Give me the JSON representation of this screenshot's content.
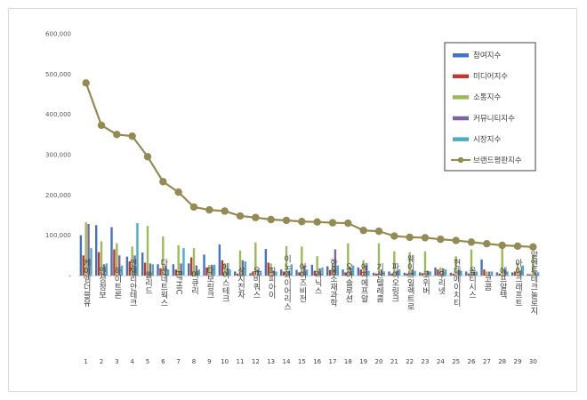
{
  "chart_data": {
    "type": "bar",
    "title": "",
    "xlabel": "",
    "ylabel": "",
    "ylim": [
      0,
      600000
    ],
    "yticks": [
      "-",
      "100,000",
      "200,000",
      "300,000",
      "400,000",
      "500,000",
      "600,000"
    ],
    "grid": false,
    "legend_position": "top-right",
    "categories": [
      "케이엠더블유",
      "인성정보",
      "하이트론",
      "인텔리안테크",
      "쏠리드",
      "다산네트웍스",
      "RFHIC",
      "머큐리",
      "다보링크",
      "에이스테크",
      "삼지전자",
      "유비쿼스",
      "피피아이",
      "이노와이어리스",
      "아이즈비전",
      "라닉스",
      "한울소재과학",
      "오이솔루션",
      "에치에프알",
      "기산텔레콤",
      "파이오링크",
      "웨이브일렉트로",
      "코위버",
      "우리넷",
      "현대에이치티",
      "옵티시스",
      "코콤",
      "에프알텍",
      "아이크래프트",
      "알엔투테크놀로지"
    ],
    "ranks": [
      "1",
      "2",
      "3",
      "4",
      "5",
      "6",
      "7",
      "8",
      "9",
      "10",
      "11",
      "12",
      "13",
      "14",
      "15",
      "16",
      "17",
      "18",
      "19",
      "20",
      "21",
      "22",
      "23",
      "24",
      "25",
      "26",
      "27",
      "28",
      "29",
      "30"
    ],
    "series": [
      {
        "name": "참여지수",
        "kind": "bar",
        "color": "#4472c4",
        "values": [
          100000,
          125000,
          120000,
          47000,
          57000,
          28000,
          28000,
          30000,
          52000,
          77000,
          10000,
          6000,
          66000,
          15000,
          14000,
          27000,
          23000,
          15000,
          20000,
          7000,
          10000,
          7000,
          8000,
          20000,
          7000,
          10000,
          40000,
          8000,
          8000,
          4000
        ]
      },
      {
        "name": "미디어지수",
        "kind": "bar",
        "color": "#c0392b",
        "values": [
          50000,
          58000,
          65000,
          35000,
          32000,
          18000,
          15000,
          45000,
          20000,
          38000,
          5000,
          10000,
          32000,
          10000,
          8000,
          12000,
          14000,
          8000,
          15000,
          5000,
          5000,
          5000,
          6000,
          15000,
          5000,
          5000,
          15000,
          5000,
          10000,
          3000
        ]
      },
      {
        "name": "소통지수",
        "kind": "bar",
        "color": "#9bbb59",
        "values": [
          132000,
          85000,
          80000,
          72000,
          123000,
          97000,
          75000,
          68000,
          26000,
          30000,
          62000,
          82000,
          30000,
          73000,
          72000,
          48000,
          30000,
          80000,
          38000,
          80000,
          60000,
          58000,
          60000,
          20000,
          48000,
          65000,
          10000,
          70000,
          32000,
          50000
        ]
      },
      {
        "name": "커뮤니티지수",
        "kind": "bar",
        "color": "#8064a2",
        "values": [
          128000,
          28000,
          50000,
          50000,
          30000,
          25000,
          30000,
          25000,
          27000,
          18000,
          38000,
          15000,
          12000,
          12000,
          25000,
          18000,
          65000,
          20000,
          25000,
          15000,
          12000,
          15000,
          12000,
          18000,
          12000,
          10000,
          10000,
          15000,
          12000,
          8000
        ]
      },
      {
        "name": "시장지수",
        "kind": "bar",
        "color": "#4bacc6",
        "values": [
          68000,
          30000,
          25000,
          130000,
          28000,
          15000,
          68000,
          15000,
          27000,
          15000,
          35000,
          12000,
          10000,
          28000,
          15000,
          20000,
          25000,
          25000,
          12000,
          10000,
          15000,
          12000,
          10000,
          15000,
          12000,
          10000,
          10000,
          10000,
          25000,
          8000
        ]
      },
      {
        "name": "브랜드평판지수",
        "kind": "line",
        "color": "#948a54",
        "values": [
          478000,
          373000,
          350000,
          346000,
          295000,
          233000,
          207000,
          170000,
          163000,
          160000,
          148000,
          144000,
          139000,
          137000,
          134000,
          133000,
          131000,
          130000,
          112000,
          110000,
          98000,
          95000,
          94000,
          90000,
          87000,
          83000,
          79000,
          75000,
          73000,
          71000
        ]
      }
    ]
  }
}
